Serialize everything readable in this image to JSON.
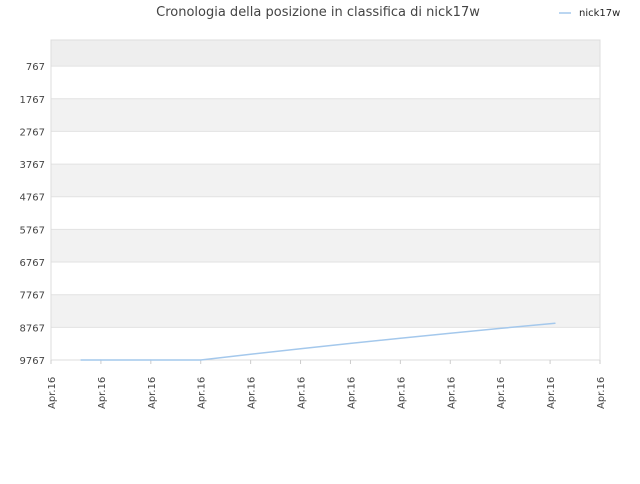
{
  "chart_data": {
    "type": "line",
    "title": "Cronologia della posizione in classifica di nick17w",
    "xlabel": "",
    "ylabel": "",
    "x_tick_labels": [
      "Apr.16",
      "Apr.16",
      "Apr.16",
      "Apr.16",
      "Apr.16",
      "Apr.16",
      "Apr.16",
      "Apr.16",
      "Apr.16",
      "Apr.16",
      "Apr.16",
      "Apr.16"
    ],
    "y_tick_labels": [
      "767",
      "1767",
      "2767",
      "3767",
      "4767",
      "5767",
      "6767",
      "7767",
      "8767",
      "9767"
    ],
    "y_ticks": [
      767,
      1767,
      2767,
      3767,
      4767,
      5767,
      6767,
      7767,
      8767,
      9767
    ],
    "ylim": [
      9767,
      -33
    ],
    "y_inverted": true,
    "grid": true,
    "legend_position": "top-right",
    "series": [
      {
        "name": "nick17w",
        "color": "#a4c8ec",
        "x": [
          0.6,
          1,
          2,
          3,
          4,
          5,
          6,
          7,
          8,
          9,
          10.1
        ],
        "values": [
          9767,
          9767,
          9767,
          9767,
          9590,
          9420,
          9260,
          9100,
          8950,
          8800,
          8640
        ]
      }
    ]
  }
}
